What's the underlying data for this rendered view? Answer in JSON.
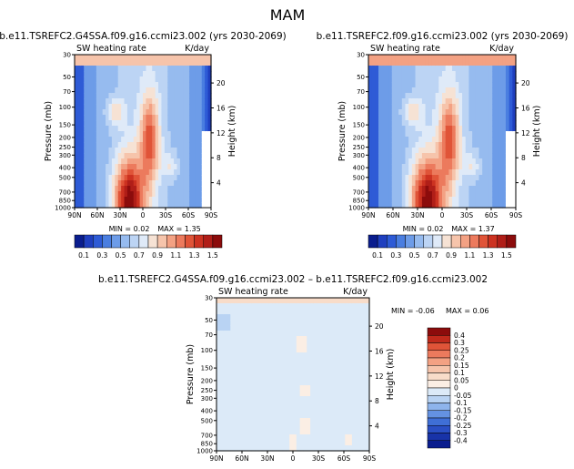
{
  "page": {
    "title": "MAM"
  },
  "chart_data": [
    {
      "type": "heatmap",
      "title": "b.e11.TSREFC2.G4SSA.f09.g16.ccmi23.002 (yrs 2030-2069)",
      "subtitle_left": "SW heating rate",
      "subtitle_right": "K/day",
      "ylabel": "Pressure (mb)",
      "ylabel_right": "Height (km)",
      "x_ticks": [
        "90N",
        "60N",
        "30N",
        "0",
        "30S",
        "60S",
        "90S"
      ],
      "y_ticks": [
        "30",
        "50",
        "70",
        "100",
        "150",
        "200",
        "250",
        "300",
        "400",
        "500",
        "700",
        "850",
        "1000"
      ],
      "y_right_ticks": [
        "20",
        "16",
        "12",
        "8",
        "4"
      ],
      "min_label": "MIN =",
      "min_value": "0.02",
      "max_label": "MAX =",
      "max_value": "1.35",
      "colorbar_labels": [
        "0.1",
        "0.3",
        "0.5",
        "0.7",
        "0.9",
        "1.1",
        "1.3",
        "1.5"
      ],
      "colors": [
        "#0a1d8e",
        "#1f3fbf",
        "#2e5bd6",
        "#4a7ee0",
        "#6d9ce8",
        "#96bbef",
        "#bcd4f4",
        "#dfeaf8",
        "#f6e2d4",
        "#f6c4ab",
        "#f3a183",
        "#ec7a5d",
        "#e05438",
        "#cc3221",
        "#b01e18",
        "#8c0c0c"
      ]
    },
    {
      "type": "heatmap",
      "title": "b.e11.TSREFC2.f09.g16.ccmi23.002 (yrs 2030-2069)",
      "subtitle_left": "SW heating rate",
      "subtitle_right": "K/day",
      "ylabel": "Pressure (mb)",
      "ylabel_right": "Height (km)",
      "x_ticks": [
        "90N",
        "60N",
        "30N",
        "0",
        "30S",
        "60S",
        "90S"
      ],
      "y_ticks": [
        "30",
        "50",
        "70",
        "100",
        "150",
        "200",
        "250",
        "300",
        "400",
        "500",
        "700",
        "850",
        "1000"
      ],
      "y_right_ticks": [
        "20",
        "16",
        "12",
        "8",
        "4"
      ],
      "min_label": "MIN =",
      "min_value": "0.02",
      "max_label": "MAX =",
      "max_value": "1.37",
      "colorbar_labels": [
        "0.1",
        "0.3",
        "0.5",
        "0.7",
        "0.9",
        "1.1",
        "1.3",
        "1.5"
      ]
    },
    {
      "type": "heatmap",
      "title": "b.e11.TSREFC2.G4SSA.f09.g16.ccmi23.002 – b.e11.TSREFC2.f09.g16.ccmi23.002",
      "subtitle_left": "SW heating rate",
      "subtitle_right": "K/day",
      "ylabel": "Pressure (mb)",
      "ylabel_right": "Height (km)",
      "x_ticks": [
        "90N",
        "60N",
        "30N",
        "0",
        "30S",
        "60S",
        "90S"
      ],
      "y_ticks": [
        "30",
        "50",
        "70",
        "100",
        "150",
        "200",
        "250",
        "300",
        "400",
        "500",
        "700",
        "850",
        "1000"
      ],
      "y_right_ticks": [
        "20",
        "16",
        "12",
        "8",
        "4"
      ],
      "min_label": "MIN =",
      "min_value": "-0.06",
      "max_label": "MAX =",
      "max_value": "0.06",
      "colorbar_labels": [
        "0.4",
        "0.3",
        "0.25",
        "0.2",
        "0.15",
        "0.1",
        "0.05",
        "0",
        "-0.05",
        "-0.1",
        "-0.15",
        "-0.2",
        "-0.25",
        "-0.3",
        "-0.4"
      ],
      "colors": [
        "#8c0c0c",
        "#c02a1c",
        "#e05438",
        "#ec7a5d",
        "#f3a183",
        "#f6c4ab",
        "#f8dcc9",
        "#fbeee4",
        "#dceaf8",
        "#b9d3f3",
        "#8eb4ec",
        "#6492e2",
        "#3f6fd6",
        "#2a4fc4",
        "#1833a8",
        "#0a1d8e"
      ]
    }
  ]
}
